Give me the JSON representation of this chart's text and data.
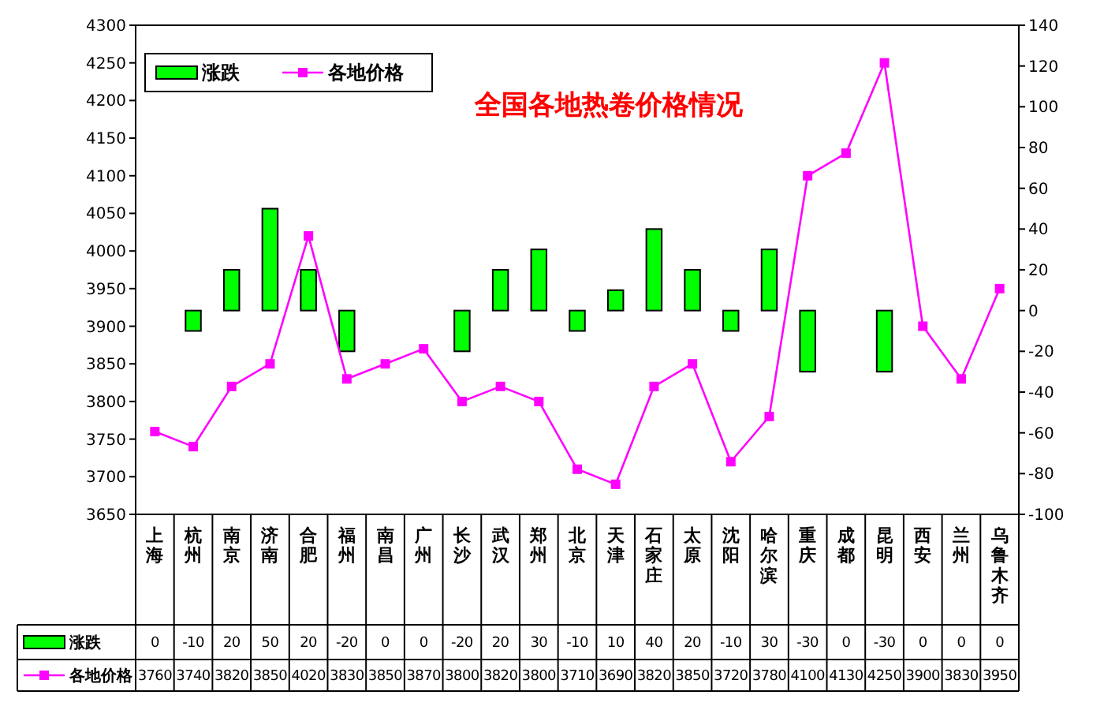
{
  "chart_data": {
    "type": "bar",
    "title": "全国各地热卷价格情况",
    "categories": [
      "上海",
      "杭州",
      "南京",
      "济南",
      "合肥",
      "福州",
      "南昌",
      "广州",
      "长沙",
      "武汉",
      "郑州",
      "北京",
      "天津",
      "石家庄",
      "太原",
      "沈阳",
      "哈尔滨",
      "重庆",
      "成都",
      "昆明",
      "西安",
      "兰州",
      "乌鲁木齐"
    ],
    "series": [
      {
        "name": "涨跌",
        "axis": "y2",
        "color": "#00ff00",
        "values": [
          0,
          -10,
          20,
          50,
          20,
          -20,
          0,
          0,
          -20,
          20,
          30,
          -10,
          10,
          40,
          20,
          -10,
          30,
          -30,
          0,
          -30,
          0,
          0,
          0
        ]
      },
      {
        "name": "各地价格",
        "type": "line",
        "color": "#ff00ff",
        "marker": "square",
        "values": [
          3760,
          3740,
          3820,
          3850,
          4020,
          3830,
          3850,
          3870,
          3800,
          3820,
          3800,
          3710,
          3690,
          3820,
          3850,
          3720,
          3780,
          4100,
          4130,
          4250,
          3900,
          3830,
          3950
        ]
      }
    ],
    "ylim": [
      3650,
      4300
    ],
    "yticks": [
      3650,
      3700,
      3750,
      3800,
      3850,
      3900,
      3950,
      4000,
      4050,
      4100,
      4150,
      4200,
      4250,
      4300
    ],
    "y2lim": [
      -100,
      140
    ],
    "y2ticks": [
      -100,
      -80,
      -60,
      -40,
      -20,
      0,
      20,
      40,
      60,
      80,
      100,
      120,
      140
    ],
    "data_labels": true,
    "legend": "top left",
    "grid": false
  }
}
